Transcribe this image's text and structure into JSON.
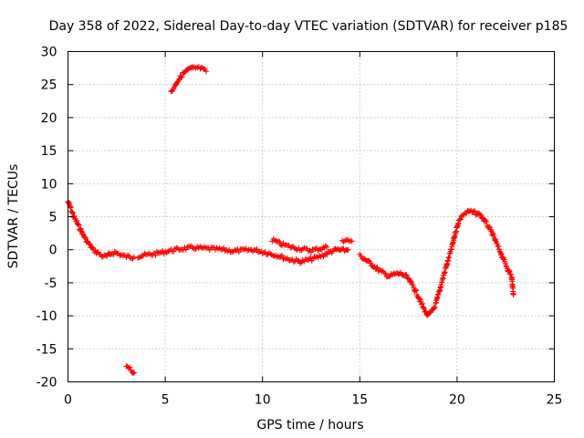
{
  "chart_data": {
    "type": "scatter",
    "title": "Day 358 of 2022, Sidereal Day-to-day VTEC variation (SDTVAR) for receiver p185",
    "xlabel": "GPS time / hours",
    "ylabel": "SDTVAR / TECUs",
    "xlim": [
      0,
      25
    ],
    "ylim": [
      -20,
      30
    ],
    "xticks": [
      "0",
      "5",
      "10",
      "15",
      "20",
      "25"
    ],
    "yticks": [
      "-20",
      "-15",
      "-10",
      "-5",
      "0",
      "5",
      "10",
      "15",
      "20",
      "25",
      "30"
    ],
    "grid": true,
    "marker": "+",
    "color": "#ff0000",
    "series": [
      {
        "name": "SDTVAR",
        "segments": [
          [
            [
              0.0,
              7.3
            ],
            [
              0.15,
              6.2
            ],
            [
              0.3,
              5.0
            ],
            [
              0.45,
              4.2
            ],
            [
              0.6,
              3.3
            ],
            [
              0.75,
              2.5
            ],
            [
              0.9,
              1.6
            ],
            [
              1.1,
              0.8
            ],
            [
              1.3,
              0.0
            ],
            [
              1.5,
              -0.4
            ],
            [
              1.8,
              -1.0
            ],
            [
              2.0,
              -1.0
            ],
            [
              2.2,
              -0.6
            ],
            [
              2.4,
              -0.4
            ],
            [
              2.6,
              -0.6
            ],
            [
              2.8,
              -0.9
            ],
            [
              3.0,
              -1.0
            ],
            [
              3.2,
              -1.1
            ],
            [
              3.4,
              -1.1
            ]
          ],
          [
            [
              3.6,
              -1.0
            ],
            [
              4.0,
              -0.8
            ],
            [
              4.5,
              -0.6
            ],
            [
              5.0,
              -0.3
            ],
            [
              5.5,
              0.0
            ],
            [
              6.0,
              0.2
            ],
            [
              6.5,
              0.3
            ],
            [
              7.0,
              0.2
            ],
            [
              7.5,
              0.1
            ],
            [
              8.0,
              0.0
            ],
            [
              8.5,
              -0.2
            ],
            [
              9.0,
              -0.1
            ],
            [
              9.5,
              0.0
            ],
            [
              10.0,
              -0.3
            ],
            [
              10.4,
              -0.6
            ],
            [
              10.8,
              -0.9
            ],
            [
              11.2,
              -1.3
            ],
            [
              11.6,
              -1.6
            ],
            [
              12.0,
              -1.8
            ],
            [
              12.4,
              -1.5
            ],
            [
              12.8,
              -1.2
            ],
            [
              13.2,
              -0.7
            ],
            [
              13.5,
              -0.3
            ],
            [
              13.8,
              0.0
            ],
            [
              14.1,
              -0.1
            ],
            [
              14.4,
              0.0
            ]
          ],
          [
            [
              10.5,
              1.5
            ],
            [
              11.0,
              0.8
            ],
            [
              11.5,
              0.4
            ],
            [
              12.0,
              0.1
            ],
            [
              12.5,
              -0.1
            ],
            [
              13.0,
              0.2
            ],
            [
              13.3,
              0.4
            ]
          ],
          [
            [
              14.1,
              1.5
            ],
            [
              14.6,
              1.3
            ]
          ],
          [
            [
              15.0,
              -0.9
            ],
            [
              15.3,
              -1.5
            ],
            [
              15.6,
              -2.2
            ],
            [
              15.9,
              -2.9
            ],
            [
              16.2,
              -3.5
            ],
            [
              16.5,
              -4.0
            ],
            [
              16.8,
              -3.7
            ],
            [
              17.1,
              -3.6
            ],
            [
              17.4,
              -4.1
            ],
            [
              17.7,
              -5.3
            ],
            [
              18.0,
              -7.0
            ],
            [
              18.3,
              -9.0
            ],
            [
              18.5,
              -10.0
            ],
            [
              18.7,
              -9.4
            ],
            [
              18.9,
              -8.3
            ],
            [
              19.1,
              -6.2
            ],
            [
              19.3,
              -4.0
            ],
            [
              19.5,
              -2.0
            ],
            [
              19.7,
              0.0
            ],
            [
              19.9,
              2.4
            ],
            [
              20.1,
              4.4
            ],
            [
              20.3,
              5.3
            ],
            [
              20.6,
              5.8
            ],
            [
              20.9,
              5.6
            ],
            [
              21.2,
              5.3
            ],
            [
              21.5,
              4.0
            ],
            [
              21.8,
              2.5
            ],
            [
              22.1,
              0.5
            ],
            [
              22.4,
              -1.5
            ],
            [
              22.6,
              -2.9
            ],
            [
              22.8,
              -4.0
            ],
            [
              22.9,
              -6.8
            ]
          ],
          [
            [
              5.3,
              23.8
            ],
            [
              5.6,
              25.4
            ],
            [
              5.9,
              26.6
            ],
            [
              6.2,
              27.3
            ],
            [
              6.5,
              27.5
            ],
            [
              6.8,
              27.5
            ],
            [
              7.1,
              27.0
            ]
          ],
          [
            [
              3.0,
              -17.6
            ],
            [
              3.4,
              -18.6
            ]
          ]
        ]
      }
    ]
  }
}
